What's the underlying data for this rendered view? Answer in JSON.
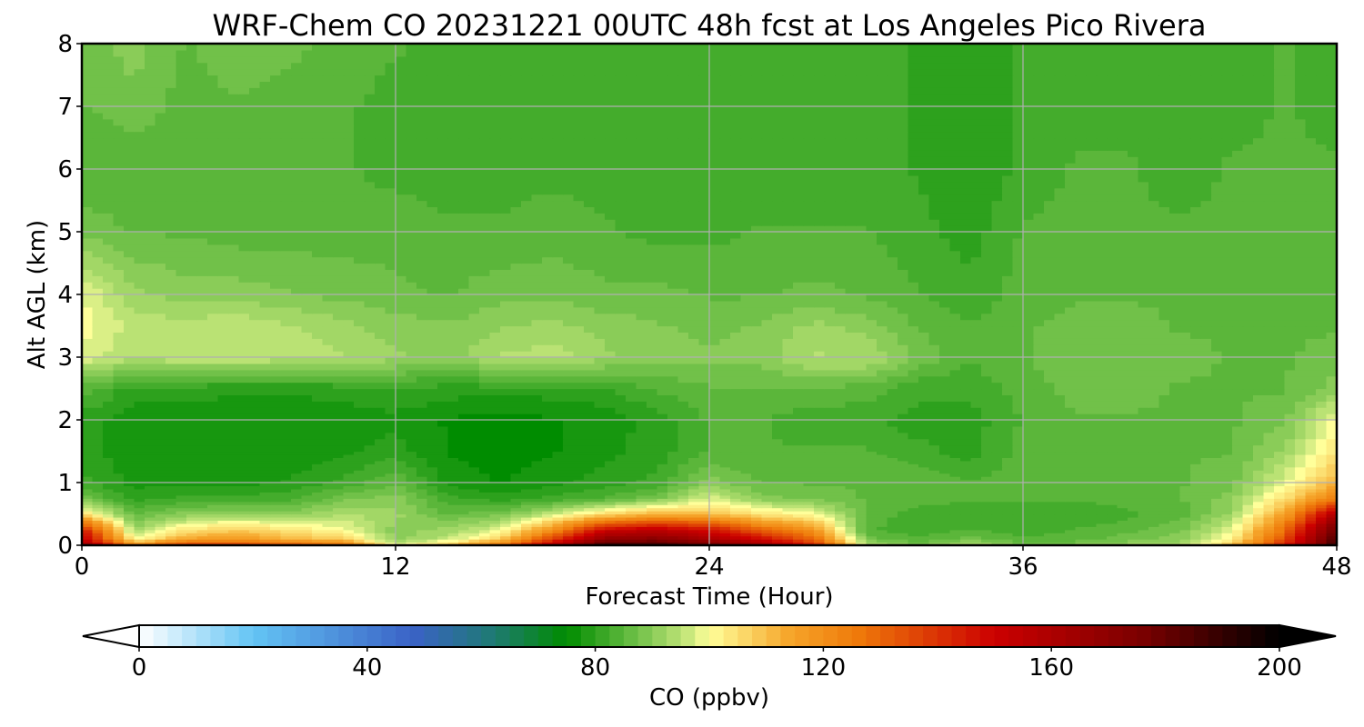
{
  "chart_data": {
    "type": "heatmap",
    "title": "WRF-Chem CO  20231221 00UTC 48h fcst at Los Angeles Pico Rivera",
    "xlabel": "Forecast Time (Hour)",
    "ylabel": "Alt AGL (km)",
    "xlim": [
      0,
      48
    ],
    "ylim": [
      0,
      8
    ],
    "x_ticks": [
      0,
      12,
      24,
      36,
      48
    ],
    "y_ticks": [
      0,
      1,
      2,
      3,
      4,
      5,
      6,
      7,
      8
    ],
    "grid": true,
    "colorbar": {
      "label": "CO  (ppbv)",
      "min": 0,
      "max": 200,
      "ticks": [
        0,
        40,
        80,
        120,
        160,
        200
      ],
      "extend": "both",
      "stops": [
        {
          "v": 0,
          "c": "#ffffff"
        },
        {
          "v": 20,
          "c": "#63c4f4"
        },
        {
          "v": 48,
          "c": "#3a62c6"
        },
        {
          "v": 62,
          "c": "#1f7a74"
        },
        {
          "v": 75,
          "c": "#008c00"
        },
        {
          "v": 88,
          "c": "#76c34c"
        },
        {
          "v": 96,
          "c": "#c4e67a"
        },
        {
          "v": 100,
          "c": "#ffff9a"
        },
        {
          "v": 114,
          "c": "#f6a52a"
        },
        {
          "v": 126,
          "c": "#ef7a0a"
        },
        {
          "v": 150,
          "c": "#cc0000"
        },
        {
          "v": 176,
          "c": "#7a0000"
        },
        {
          "v": 200,
          "c": "#000000"
        }
      ]
    },
    "hours": [
      0,
      2,
      4,
      6,
      8,
      10,
      12,
      14,
      16,
      18,
      20,
      22,
      24,
      26,
      28,
      30,
      32,
      34,
      36,
      38,
      40,
      42,
      44,
      46,
      48
    ],
    "altitudes_km": [
      0,
      0.1,
      0.25,
      0.5,
      0.75,
      1,
      1.5,
      2,
      2.5,
      3,
      3.5,
      4,
      5,
      6,
      7,
      8
    ],
    "co_ppbv": [
      [
        170,
        125,
        140,
        140,
        135,
        130,
        98,
        110,
        128,
        160,
        190,
        190,
        180,
        165,
        145,
        95,
        88,
        95,
        88,
        90,
        92,
        95,
        110,
        145,
        190
      ],
      [
        155,
        100,
        115,
        118,
        112,
        108,
        90,
        96,
        108,
        138,
        170,
        172,
        162,
        150,
        130,
        88,
        84,
        88,
        84,
        85,
        88,
        90,
        102,
        135,
        185
      ],
      [
        145,
        92,
        104,
        108,
        104,
        100,
        90,
        92,
        98,
        120,
        150,
        155,
        148,
        130,
        118,
        84,
        82,
        84,
        82,
        84,
        85,
        88,
        98,
        128,
        180
      ],
      [
        105,
        86,
        90,
        91,
        90,
        94,
        92,
        86,
        88,
        96,
        106,
        112,
        110,
        104,
        100,
        86,
        82,
        82,
        82,
        82,
        83,
        85,
        92,
        115,
        160
      ],
      [
        88,
        80,
        82,
        82,
        83,
        88,
        90,
        82,
        80,
        82,
        84,
        88,
        98,
        90,
        88,
        86,
        85,
        84,
        84,
        84,
        85,
        86,
        90,
        105,
        125
      ],
      [
        82,
        78,
        78,
        78,
        79,
        82,
        86,
        78,
        76,
        78,
        80,
        82,
        90,
        86,
        86,
        86,
        86,
        84,
        85,
        86,
        86,
        86,
        88,
        98,
        112
      ],
      [
        80,
        77,
        77,
        77,
        77,
        78,
        80,
        76,
        75,
        76,
        78,
        80,
        84,
        84,
        84,
        84,
        82,
        80,
        85,
        86,
        86,
        86,
        86,
        92,
        104
      ],
      [
        80,
        77,
        77,
        77,
        77,
        77,
        78,
        76,
        75,
        76,
        77,
        80,
        84,
        84,
        82,
        82,
        80,
        80,
        84,
        86,
        86,
        86,
        86,
        88,
        100
      ],
      [
        85,
        80,
        80,
        79,
        79,
        80,
        81,
        80,
        80,
        80,
        81,
        84,
        86,
        86,
        86,
        85,
        82,
        82,
        85,
        87,
        87,
        86,
        86,
        86,
        90
      ],
      [
        98,
        94,
        96,
        96,
        95,
        94,
        92,
        90,
        94,
        95,
        92,
        90,
        89,
        90,
        94,
        94,
        88,
        84,
        86,
        88,
        88,
        87,
        86,
        86,
        87
      ],
      [
        100,
        95,
        95,
        96,
        94,
        92,
        90,
        89,
        91,
        92,
        90,
        89,
        88,
        89,
        92,
        90,
        86,
        84,
        86,
        87,
        87,
        86,
        86,
        86,
        86
      ],
      [
        99,
        92,
        90,
        90,
        89,
        88,
        87,
        86,
        88,
        88,
        87,
        87,
        86,
        86,
        87,
        86,
        84,
        82,
        85,
        86,
        86,
        86,
        86,
        86,
        86
      ],
      [
        88,
        86,
        86,
        85,
        85,
        85,
        85,
        84,
        84,
        85,
        84,
        83,
        83,
        84,
        84,
        84,
        82,
        80,
        84,
        85,
        84,
        84,
        84,
        85,
        84
      ],
      [
        84,
        84,
        84,
        84,
        84,
        84,
        83,
        83,
        83,
        83,
        83,
        83,
        82,
        82,
        82,
        82,
        81,
        79,
        82,
        84,
        84,
        83,
        84,
        84,
        84
      ],
      [
        86,
        88,
        85,
        86,
        85,
        84,
        83,
        83,
        83,
        82,
        82,
        82,
        82,
        82,
        82,
        82,
        81,
        79,
        82,
        83,
        83,
        83,
        83,
        84,
        83
      ],
      [
        87,
        90,
        86,
        88,
        87,
        85,
        84,
        83,
        83,
        82,
        82,
        82,
        82,
        82,
        82,
        82,
        81,
        79,
        82,
        83,
        83,
        82,
        83,
        84,
        82
      ]
    ]
  }
}
